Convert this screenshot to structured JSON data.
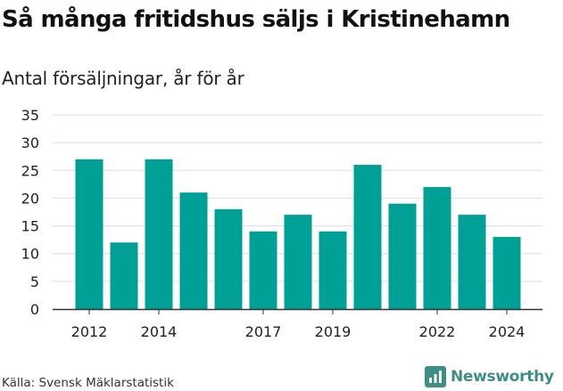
{
  "title": "Så många fritidshus säljs i Kristinehamn",
  "subtitle": "Antal försäljningar, år för år",
  "source": "Källa: Svensk Mäklarstatistik",
  "brand": {
    "name": "Newsworthy",
    "color": "#3d8f84",
    "icon": "newsworthy-logo-icon"
  },
  "chart_data": {
    "type": "bar",
    "title": "Så många fritidshus säljs i Kristinehamn",
    "subtitle": "Antal försäljningar, år för år",
    "xlabel": "",
    "ylabel": "",
    "categories": [
      "2012",
      "2013",
      "2014",
      "2015",
      "2016",
      "2017",
      "2018",
      "2019",
      "2020",
      "2021",
      "2022",
      "2023",
      "2024"
    ],
    "values": [
      27,
      12,
      27,
      21,
      18,
      14,
      17,
      14,
      26,
      19,
      22,
      17,
      13
    ],
    "x_tick_labels": [
      "2012",
      "2014",
      "2017",
      "2019",
      "2022",
      "2024"
    ],
    "y_ticks": [
      0,
      5,
      10,
      15,
      20,
      25,
      30,
      35
    ],
    "ylim": [
      0,
      35
    ],
    "grid": true,
    "legend": "none",
    "bar_color": "#00a096",
    "grid_color": "#dddddd",
    "axis_color": "#333333"
  }
}
